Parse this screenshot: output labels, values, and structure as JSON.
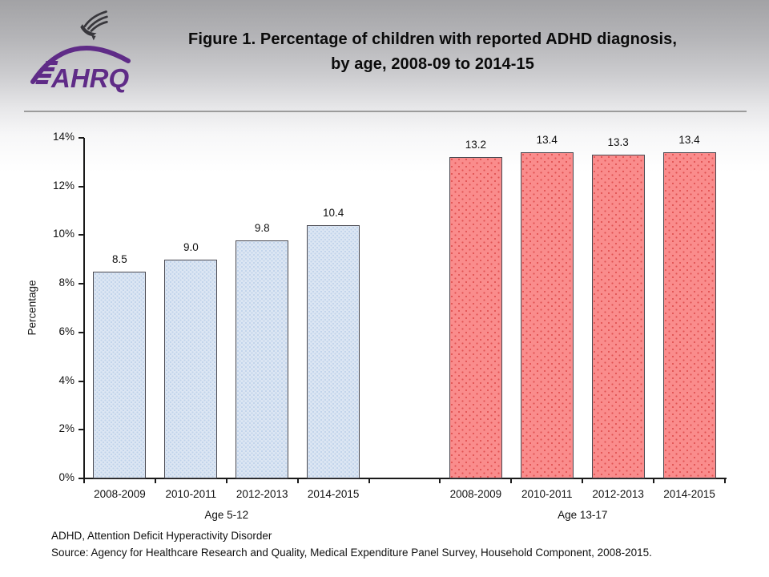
{
  "header": {
    "logo_text": "AHRQ",
    "title_line1": "Figure 1. Percentage of children with reported ADHD diagnosis,",
    "title_line2": "by age, 2008-09 to 2014-15"
  },
  "chart_data": {
    "type": "bar",
    "title": "Figure 1. Percentage of children with reported ADHD diagnosis, by age, 2008-09 to 2014-15",
    "xlabel": "",
    "ylabel": "Percentage",
    "ylim": [
      0,
      14
    ],
    "y_ticks": [
      "0%",
      "2%",
      "4%",
      "6%",
      "8%",
      "10%",
      "12%",
      "14%"
    ],
    "grid": false,
    "legend_position": "none",
    "groups": [
      {
        "label": "Age 5-12",
        "categories": [
          "2008-2009",
          "2010-2011",
          "2012-2013",
          "2014-2015"
        ],
        "values": [
          8.5,
          9.0,
          9.8,
          10.4
        ],
        "fill": "#dce6f3",
        "dot": "#bfd2ea",
        "border": "#4a4a52",
        "dot_spacing": "5px"
      },
      {
        "label": "Age 13-17",
        "categories": [
          "2008-2009",
          "2010-2011",
          "2012-2013",
          "2014-2015"
        ],
        "values": [
          13.2,
          13.4,
          13.3,
          13.4
        ],
        "fill": "#fa8c8c",
        "dot": "#e05252",
        "border": "#4a4a52",
        "dot_spacing": "9px"
      }
    ]
  },
  "footer": {
    "line1": "ADHD, Attention Deficit Hyperactivity Disorder",
    "line2": "Source: Agency for Healthcare Research and Quality, Medical Expenditure Panel Survey, Household Component, 2008-2015."
  },
  "colors": {
    "logo_purple": "#5f2b87",
    "eagle": "#38373c",
    "axis": "#1a1a1a",
    "divider": "#9b9b9b"
  }
}
